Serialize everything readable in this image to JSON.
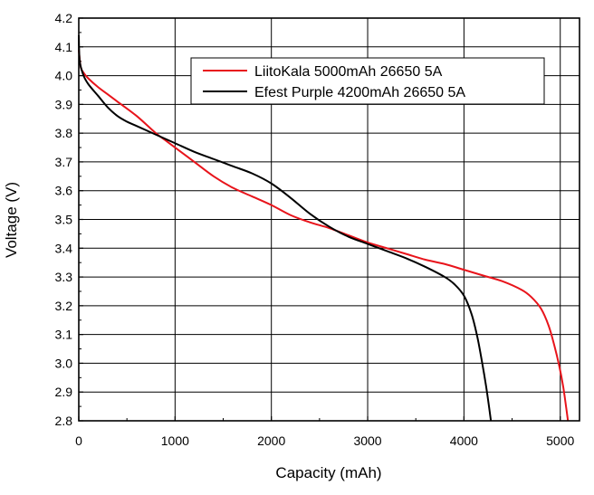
{
  "chart_data": {
    "type": "line",
    "title": "",
    "xlabel": "Capacity (mAh)",
    "ylabel": "Voltage (V)",
    "xlim": [
      0,
      5200
    ],
    "ylim": [
      2.8,
      4.2
    ],
    "xticks": [
      0,
      1000,
      2000,
      3000,
      4000,
      5000
    ],
    "yticks": [
      2.8,
      2.9,
      3.0,
      3.1,
      3.2,
      3.3,
      3.4,
      3.5,
      3.6,
      3.7,
      3.8,
      3.9,
      4.0,
      4.1,
      4.2
    ],
    "grid": true,
    "legend": "top-right",
    "series": [
      {
        "name": "LiitoKala 5000mAh 26650 5A",
        "color": "#e8141b",
        "points": [
          [
            0,
            4.09
          ],
          [
            20,
            4.03
          ],
          [
            50,
            4.01
          ],
          [
            100,
            3.99
          ],
          [
            200,
            3.96
          ],
          [
            300,
            3.935
          ],
          [
            400,
            3.91
          ],
          [
            600,
            3.86
          ],
          [
            800,
            3.8
          ],
          [
            900,
            3.775
          ],
          [
            1000,
            3.75
          ],
          [
            1200,
            3.7
          ],
          [
            1400,
            3.65
          ],
          [
            1600,
            3.61
          ],
          [
            1800,
            3.58
          ],
          [
            2000,
            3.55
          ],
          [
            2200,
            3.515
          ],
          [
            2400,
            3.49
          ],
          [
            2600,
            3.47
          ],
          [
            2800,
            3.445
          ],
          [
            3000,
            3.42
          ],
          [
            3200,
            3.4
          ],
          [
            3400,
            3.38
          ],
          [
            3600,
            3.36
          ],
          [
            3800,
            3.345
          ],
          [
            4000,
            3.325
          ],
          [
            4200,
            3.305
          ],
          [
            4400,
            3.285
          ],
          [
            4600,
            3.255
          ],
          [
            4700,
            3.23
          ],
          [
            4800,
            3.19
          ],
          [
            4880,
            3.13
          ],
          [
            4940,
            3.06
          ],
          [
            4990,
            2.99
          ],
          [
            5030,
            2.92
          ],
          [
            5060,
            2.85
          ],
          [
            5080,
            2.8
          ]
        ]
      },
      {
        "name": "Efest Purple 4200mAh 26650 5A",
        "color": "#000000",
        "points": [
          [
            0,
            4.14
          ],
          [
            10,
            4.05
          ],
          [
            50,
            4.0
          ],
          [
            100,
            3.97
          ],
          [
            200,
            3.93
          ],
          [
            300,
            3.89
          ],
          [
            400,
            3.86
          ],
          [
            500,
            3.84
          ],
          [
            600,
            3.825
          ],
          [
            800,
            3.795
          ],
          [
            1000,
            3.765
          ],
          [
            1200,
            3.735
          ],
          [
            1400,
            3.71
          ],
          [
            1600,
            3.685
          ],
          [
            1800,
            3.66
          ],
          [
            2000,
            3.625
          ],
          [
            2200,
            3.575
          ],
          [
            2400,
            3.52
          ],
          [
            2600,
            3.475
          ],
          [
            2800,
            3.44
          ],
          [
            3000,
            3.415
          ],
          [
            3200,
            3.39
          ],
          [
            3400,
            3.365
          ],
          [
            3600,
            3.335
          ],
          [
            3800,
            3.3
          ],
          [
            3900,
            3.275
          ],
          [
            4000,
            3.235
          ],
          [
            4080,
            3.17
          ],
          [
            4140,
            3.09
          ],
          [
            4190,
            3.0
          ],
          [
            4230,
            2.92
          ],
          [
            4260,
            2.85
          ],
          [
            4280,
            2.8
          ]
        ]
      }
    ]
  }
}
